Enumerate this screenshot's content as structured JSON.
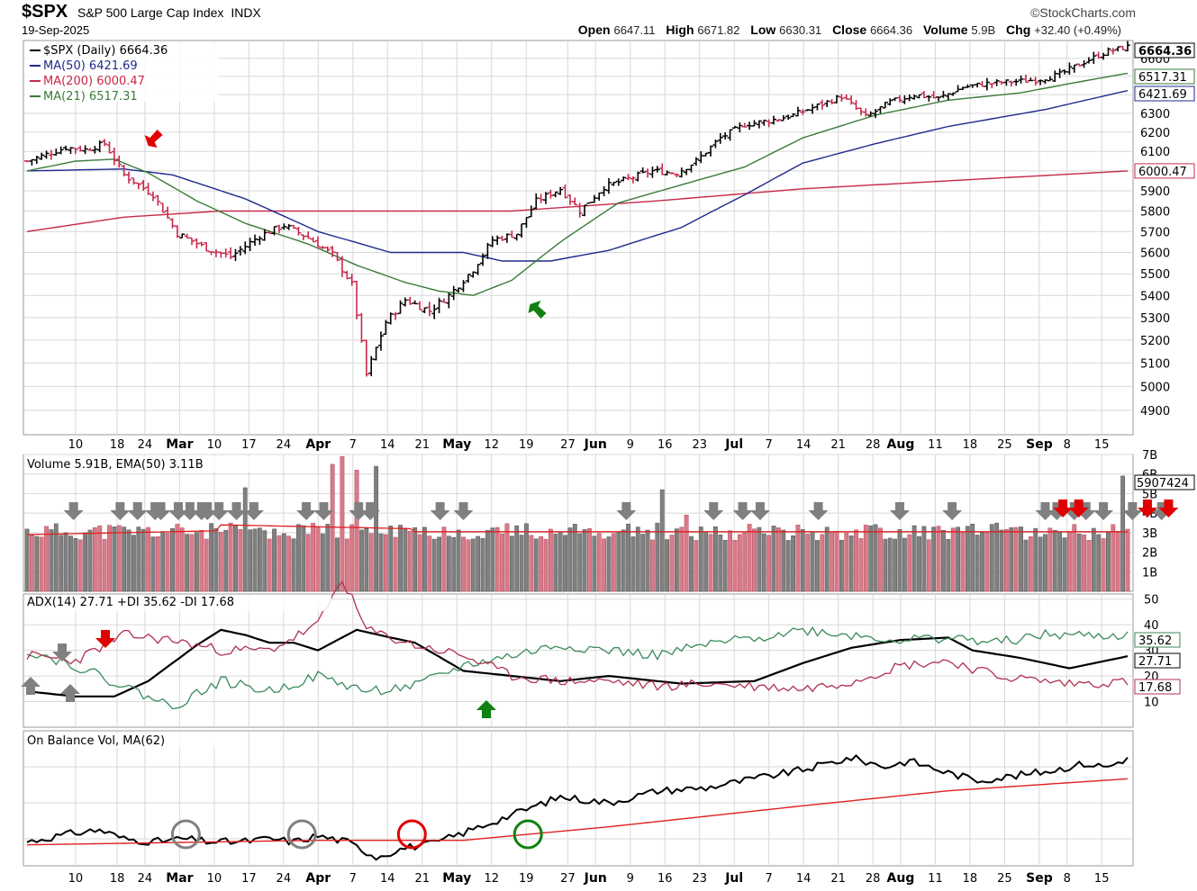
{
  "header": {
    "symbol": "$SPX",
    "name": "S&P 500 Large Cap Index",
    "exchange": "INDX",
    "brand": "©StockCharts.com",
    "date": "19-Sep-2025",
    "open_label": "Open",
    "open": "6647.11",
    "high_label": "High",
    "high": "6671.82",
    "low_label": "Low",
    "low": "6630.31",
    "close_label": "Close",
    "close": "6664.36",
    "volume_label": "Volume",
    "volume": "5.9B",
    "chg_label": "Chg",
    "chg": "+32.40 (+0.49%)"
  },
  "colors": {
    "up": "#000000",
    "down": "#c8284a",
    "ma50": "#1f2a8c",
    "ma200": "#c8284a",
    "ma21": "#3a7a3a",
    "grid": "#d8d8d8",
    "volume_up": "#808080",
    "volume_down": "#d97a88",
    "adx": "#000000",
    "plus_di": "#3a8a5a",
    "minus_di": "#b03050",
    "obv": "#000000",
    "obv_ma": "#e02020",
    "arrow_red": "#e00000",
    "arrow_green": "#108010",
    "arrow_gray": "#808080"
  },
  "chart_data": [
    {
      "type": "candlestick",
      "panel": "price",
      "legend": [
        "$SPX (Daily) 6664.36",
        "MA(50) 6421.69",
        "MA(200) 6000.47",
        "MA(21) 6517.31"
      ],
      "right_labels": {
        "price": "6664.36",
        "ma21": "6517.31",
        "ma50": "6421.69",
        "ma200": "6000.47"
      },
      "y_ticks": [
        "4900",
        "5000",
        "5100",
        "5200",
        "5300",
        "5400",
        "5500",
        "5600",
        "5700",
        "5800",
        "5900",
        "6000",
        "6100",
        "6200",
        "6300",
        "6400",
        "6500",
        "6600",
        "6700"
      ],
      "yscale": "log",
      "ylim": [
        4800,
        6700
      ],
      "x_ticks": [
        {
          "label": "10",
          "bold": false
        },
        {
          "label": "18",
          "bold": false
        },
        {
          "label": "24",
          "bold": false
        },
        {
          "label": "Mar",
          "bold": true
        },
        {
          "label": "10",
          "bold": false
        },
        {
          "label": "17",
          "bold": false
        },
        {
          "label": "24",
          "bold": false
        },
        {
          "label": "Apr",
          "bold": true
        },
        {
          "label": "7",
          "bold": false
        },
        {
          "label": "14",
          "bold": false
        },
        {
          "label": "21",
          "bold": false
        },
        {
          "label": "May",
          "bold": true
        },
        {
          "label": "12",
          "bold": false
        },
        {
          "label": "19",
          "bold": false
        },
        {
          "label": "27",
          "bold": false
        },
        {
          "label": "Jun",
          "bold": true
        },
        {
          "label": "9",
          "bold": false
        },
        {
          "label": "16",
          "bold": false
        },
        {
          "label": "23",
          "bold": false
        },
        {
          "label": "Jul",
          "bold": true
        },
        {
          "label": "7",
          "bold": false
        },
        {
          "label": "14",
          "bold": false
        },
        {
          "label": "21",
          "bold": false
        },
        {
          "label": "28",
          "bold": false
        },
        {
          "label": "Aug",
          "bold": true
        },
        {
          "label": "11",
          "bold": false
        },
        {
          "label": "18",
          "bold": false
        },
        {
          "label": "25",
          "bold": false
        },
        {
          "label": "Sep",
          "bold": true
        },
        {
          "label": "8",
          "bold": false
        },
        {
          "label": "15",
          "bold": false
        }
      ],
      "close_anchors": [
        [
          0,
          6050
        ],
        [
          8,
          6120
        ],
        [
          12,
          6110
        ],
        [
          16,
          6140
        ],
        [
          20,
          5980
        ],
        [
          26,
          5880
        ],
        [
          31,
          5690
        ],
        [
          37,
          5620
        ],
        [
          42,
          5580
        ],
        [
          48,
          5680
        ],
        [
          53,
          5730
        ],
        [
          58,
          5670
        ],
        [
          63,
          5590
        ],
        [
          67,
          5450
        ],
        [
          70,
          5050
        ],
        [
          74,
          5280
        ],
        [
          78,
          5380
        ],
        [
          83,
          5330
        ],
        [
          87,
          5400
        ],
        [
          92,
          5520
        ],
        [
          96,
          5660
        ],
        [
          101,
          5690
        ],
        [
          105,
          5850
        ],
        [
          110,
          5910
        ],
        [
          114,
          5800
        ],
        [
          119,
          5920
        ],
        [
          124,
          5960
        ],
        [
          129,
          6000
        ],
        [
          134,
          5990
        ],
        [
          138,
          6050
        ],
        [
          143,
          6170
        ],
        [
          148,
          6240
        ],
        [
          153,
          6260
        ],
        [
          158,
          6290
        ],
        [
          163,
          6340
        ],
        [
          168,
          6390
        ],
        [
          173,
          6280
        ],
        [
          178,
          6360
        ],
        [
          183,
          6400
        ],
        [
          188,
          6380
        ],
        [
          193,
          6440
        ],
        [
          198,
          6460
        ],
        [
          203,
          6470
        ],
        [
          208,
          6480
        ],
        [
          213,
          6510
        ],
        [
          218,
          6580
        ],
        [
          223,
          6640
        ],
        [
          227,
          6664
        ]
      ],
      "ma50_anchors": [
        [
          0,
          6000
        ],
        [
          20,
          6010
        ],
        [
          30,
          5980
        ],
        [
          45,
          5860
        ],
        [
          60,
          5700
        ],
        [
          75,
          5600
        ],
        [
          90,
          5600
        ],
        [
          98,
          5560
        ],
        [
          108,
          5560
        ],
        [
          120,
          5610
        ],
        [
          135,
          5720
        ],
        [
          148,
          5880
        ],
        [
          160,
          6040
        ],
        [
          175,
          6140
        ],
        [
          190,
          6230
        ],
        [
          210,
          6320
        ],
        [
          227,
          6422
        ]
      ],
      "ma200_anchors": [
        [
          0,
          5700
        ],
        [
          20,
          5770
        ],
        [
          40,
          5800
        ],
        [
          80,
          5800
        ],
        [
          100,
          5800
        ],
        [
          130,
          5850
        ],
        [
          160,
          5910
        ],
        [
          190,
          5950
        ],
        [
          227,
          6000
        ]
      ],
      "ma21_anchors": [
        [
          0,
          6000
        ],
        [
          10,
          6050
        ],
        [
          18,
          6060
        ],
        [
          25,
          5990
        ],
        [
          35,
          5850
        ],
        [
          45,
          5740
        ],
        [
          58,
          5640
        ],
        [
          68,
          5540
        ],
        [
          78,
          5460
        ],
        [
          85,
          5420
        ],
        [
          92,
          5400
        ],
        [
          100,
          5470
        ],
        [
          110,
          5650
        ],
        [
          122,
          5840
        ],
        [
          135,
          5930
        ],
        [
          148,
          6020
        ],
        [
          160,
          6170
        ],
        [
          175,
          6290
        ],
        [
          190,
          6370
        ],
        [
          205,
          6410
        ],
        [
          215,
          6460
        ],
        [
          227,
          6517
        ]
      ],
      "annotations": [
        {
          "type": "arrow",
          "color": "red",
          "bar": 20,
          "direction": "down-left"
        },
        {
          "type": "arrow",
          "color": "green",
          "bar": 83,
          "direction": "up-left"
        }
      ]
    },
    {
      "type": "bar",
      "panel": "volume",
      "legend": "Volume 5.91B, EMA(50) 3.11B",
      "right_label": "5907424",
      "y_ticks": [
        "1B",
        "2B",
        "3B",
        "4B",
        "5B",
        "6B",
        "7B"
      ],
      "ylim": [
        0,
        7
      ],
      "units": "billions",
      "highlights": [
        {
          "bar": 45,
          "value": 5.3
        },
        {
          "bar": 63,
          "value": 6.5
        },
        {
          "bar": 65,
          "value": 6.9
        },
        {
          "bar": 68,
          "value": 6.2
        },
        {
          "bar": 72,
          "value": 6.4
        },
        {
          "bar": 131,
          "value": 5.2
        },
        {
          "bar": 136,
          "value": 3.9
        },
        {
          "bar": 226,
          "value": 5.9
        }
      ],
      "gray_arrows": [
        8,
        16,
        19,
        22,
        23,
        26,
        28,
        30,
        31,
        33,
        36,
        39,
        48,
        51,
        57,
        59,
        71,
        75,
        103,
        118,
        123,
        126,
        136,
        150,
        159,
        175,
        177,
        180,
        182,
        185,
        190,
        195
      ],
      "red_arrows": [
        196,
        199,
        212,
        216
      ]
    },
    {
      "type": "line",
      "panel": "adx",
      "legend": "ADX(14) 27.71 +DI 35.62 -DI 17.68",
      "series": [
        {
          "name": "ADX(14)",
          "anchors": [
            [
              0,
              14
            ],
            [
              10,
              12
            ],
            [
              18,
              12
            ],
            [
              25,
              18
            ],
            [
              35,
              32
            ],
            [
              40,
              38
            ],
            [
              45,
              36
            ],
            [
              50,
              33
            ],
            [
              55,
              33
            ],
            [
              60,
              30
            ],
            [
              68,
              38
            ],
            [
              75,
              35
            ],
            [
              80,
              33
            ],
            [
              90,
              22
            ],
            [
              100,
              20
            ],
            [
              110,
              18
            ],
            [
              120,
              20
            ],
            [
              135,
              17
            ],
            [
              150,
              18
            ],
            [
              160,
              25
            ],
            [
              170,
              31
            ],
            [
              180,
              34
            ],
            [
              190,
              35
            ],
            [
              195,
              30
            ],
            [
              205,
              27
            ],
            [
              215,
              23
            ],
            [
              227,
              27.71
            ]
          ]
        },
        {
          "name": "+DI",
          "anchors": [
            [
              0,
              30
            ],
            [
              10,
              24
            ],
            [
              20,
              16
            ],
            [
              30,
              8
            ],
            [
              40,
              18
            ],
            [
              50,
              14
            ],
            [
              60,
              20
            ],
            [
              70,
              14
            ],
            [
              80,
              16
            ],
            [
              90,
              24
            ],
            [
              100,
              28
            ],
            [
              110,
              32
            ],
            [
              120,
              30
            ],
            [
              130,
              28
            ],
            [
              140,
              32
            ],
            [
              150,
              35
            ],
            [
              160,
              38
            ],
            [
              170,
              36
            ],
            [
              180,
              34
            ],
            [
              190,
              35
            ],
            [
              200,
              33
            ],
            [
              210,
              36
            ],
            [
              227,
              35.62
            ]
          ]
        },
        {
          "name": "-DI",
          "anchors": [
            [
              0,
              28
            ],
            [
              10,
              26
            ],
            [
              20,
              36
            ],
            [
              30,
              34
            ],
            [
              40,
              30
            ],
            [
              50,
              30
            ],
            [
              60,
              40
            ],
            [
              65,
              58
            ],
            [
              70,
              38
            ],
            [
              80,
              32
            ],
            [
              90,
              28
            ],
            [
              100,
              20
            ],
            [
              110,
              18
            ],
            [
              120,
              18
            ],
            [
              130,
              16
            ],
            [
              140,
              17
            ],
            [
              150,
              16
            ],
            [
              160,
              15
            ],
            [
              170,
              18
            ],
            [
              180,
              24
            ],
            [
              190,
              26
            ],
            [
              200,
              20
            ],
            [
              215,
              17
            ],
            [
              227,
              17.68
            ]
          ]
        }
      ],
      "right_labels": {
        "plus_di": "35.62",
        "adx": "27.71",
        "minus_di": "17.68"
      },
      "y_ticks": [
        "10",
        "20",
        "30",
        "40",
        "50"
      ],
      "ylim": [
        0,
        52
      ]
    },
    {
      "type": "line",
      "panel": "obv",
      "legend": "On Balance Vol, MA(62)",
      "series": [
        {
          "name": "On Balance Vol",
          "anchors": [
            [
              0,
              36
            ],
            [
              10,
              42
            ],
            [
              15,
              44
            ],
            [
              20,
              38
            ],
            [
              26,
              36
            ],
            [
              32,
              38
            ],
            [
              38,
              36
            ],
            [
              44,
              36
            ],
            [
              50,
              38
            ],
            [
              55,
              36
            ],
            [
              60,
              40
            ],
            [
              66,
              36
            ],
            [
              72,
              26
            ],
            [
              78,
              32
            ],
            [
              84,
              35
            ],
            [
              90,
              42
            ],
            [
              100,
              54
            ],
            [
              110,
              66
            ],
            [
              120,
              62
            ],
            [
              130,
              70
            ],
            [
              140,
              72
            ],
            [
              150,
              78
            ],
            [
              160,
              84
            ],
            [
              170,
              92
            ],
            [
              177,
              86
            ],
            [
              182,
              90
            ],
            [
              190,
              82
            ],
            [
              196,
              77
            ],
            [
              204,
              80
            ],
            [
              212,
              84
            ],
            [
              218,
              88
            ],
            [
              223,
              86
            ],
            [
              227,
              92
            ]
          ]
        },
        {
          "name": "MA(62)",
          "anchors": [
            [
              0,
              34
            ],
            [
              60,
              37
            ],
            [
              90,
              37
            ],
            [
              120,
              46
            ],
            [
              160,
              60
            ],
            [
              190,
              70
            ],
            [
              227,
              78
            ]
          ]
        }
      ],
      "circles": [
        {
          "bar": 26,
          "color": "gray"
        },
        {
          "bar": 45,
          "color": "gray"
        },
        {
          "bar": 63,
          "color": "red"
        },
        {
          "bar": 82,
          "color": "green"
        }
      ],
      "ylim": [
        20,
        110
      ]
    }
  ]
}
